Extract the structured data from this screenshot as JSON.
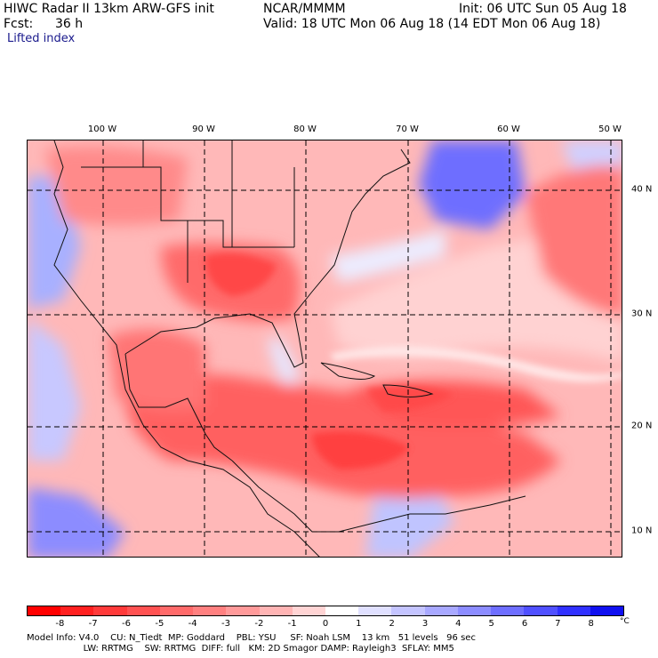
{
  "header": {
    "model_title": "HIWC Radar II 13km ARW-GFS init",
    "org": "NCAR/MMMM",
    "init": "Init: 06 UTC Sun 05 Aug 18",
    "fcst_label": "Fcst:",
    "fcst_value": "36 h",
    "valid": "Valid: 18 UTC Mon 06 Aug 18 (14 EDT Mon 06 Aug 18)",
    "field": "Lifted index"
  },
  "axes": {
    "longitudes": [
      "100 W",
      "90 W",
      "80 W",
      "70 W",
      "60 W",
      "50 W"
    ],
    "latitudes": [
      "40 N",
      "30 N",
      "20 N",
      "10 N"
    ]
  },
  "colorbar": {
    "unit": "°C",
    "ticks": [
      "-8",
      "-7",
      "-6",
      "-5",
      "-4",
      "-3",
      "-2",
      "-1",
      "0",
      "1",
      "2",
      "3",
      "4",
      "5",
      "6",
      "7",
      "8"
    ],
    "colors": [
      "#ff0000",
      "#ff2020",
      "#ff3a3a",
      "#ff5252",
      "#ff6a6a",
      "#ff8080",
      "#ff9a9a",
      "#ffb4b4",
      "#ffd4d4",
      "#ffffff",
      "#e0e0ff",
      "#c4c4ff",
      "#a8a8ff",
      "#8c8cff",
      "#6e6eff",
      "#5050ff",
      "#3030ff",
      "#1010f0"
    ]
  },
  "model_info": {
    "line1": "Model Info: V4.0    CU: N_Tiedt  MP: Goddard    PBL: YSU     SF: Noah LSM    13 km   51 levels   96 sec",
    "line2": "                    LW: RRTMG    SW: RRTMG  DIFF: full   KM: 2D Smagor DAMP: Rayleigh3  SFLAY: MM5"
  }
}
